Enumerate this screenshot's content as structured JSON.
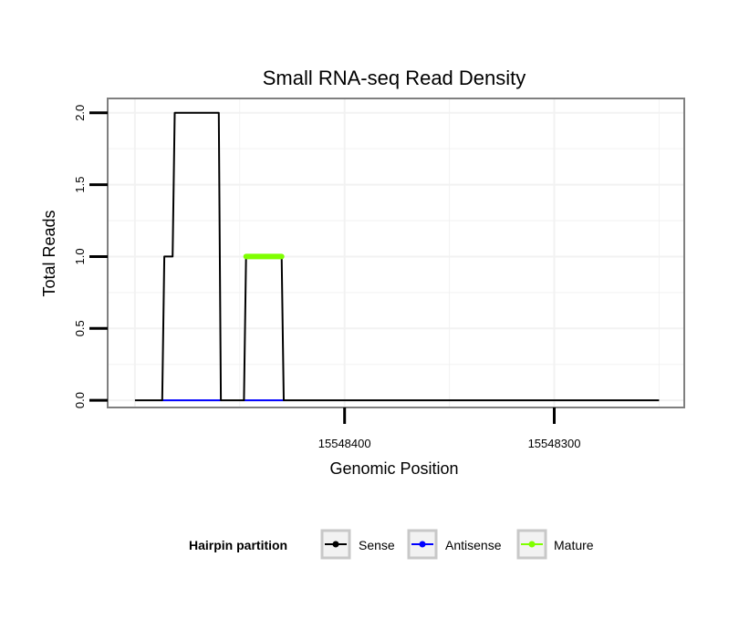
{
  "chart_data": {
    "type": "line",
    "title": "Small RNA-seq Read Density",
    "xlabel": "Genomic Position",
    "ylabel": "Total Reads",
    "xlim": [
      15548513,
      15548238
    ],
    "ylim": [
      -0.05,
      2.1
    ],
    "x_reversed": true,
    "x_ticks": [
      15548400,
      15548300
    ],
    "x_tick_labels": [
      "15548400",
      "15548300"
    ],
    "y_ticks": [
      0,
      0.5,
      1,
      1.5,
      2
    ],
    "y_tick_labels": [
      "0.0",
      "0.5",
      "1.0",
      "1.5",
      "2.0"
    ],
    "grid": true,
    "legend_position": "bottom",
    "legend_title": "Hairpin partition",
    "colors": {
      "Sense": "#000000",
      "Antisense": "#0000ff",
      "Mature": "#7fff00"
    },
    "series": [
      {
        "name": "Sense",
        "x": [
          15548500,
          15548487,
          15548486,
          15548482,
          15548481,
          15548460,
          15548459,
          15548448,
          15548447,
          15548430,
          15548429,
          15548250
        ],
        "y": [
          0,
          0,
          1,
          1,
          2,
          2,
          0,
          0,
          1,
          1,
          0,
          0
        ]
      },
      {
        "name": "Antisense",
        "x": [
          15548487,
          15548459,
          15548448,
          15548429
        ],
        "y": [
          0,
          0,
          0,
          0
        ],
        "segments": [
          [
            0,
            1
          ],
          [
            2,
            3
          ]
        ]
      },
      {
        "name": "Mature",
        "x": [
          15548447,
          15548430
        ],
        "y": [
          1,
          1
        ]
      }
    ]
  }
}
